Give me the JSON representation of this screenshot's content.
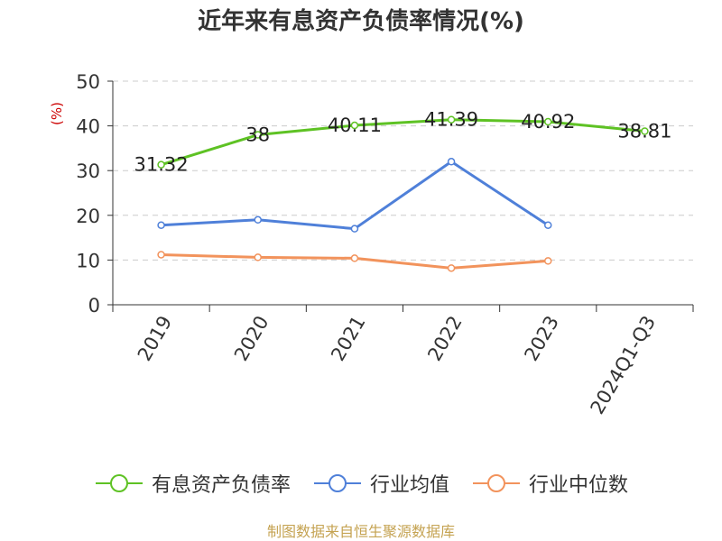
{
  "title": "近年来有息资产负债率情况(%)",
  "source_note": "制图数据来自恒生聚源数据库",
  "colors": {
    "series_0": "#5ec224",
    "series_1": "#4f80d9",
    "series_2": "#f2935c",
    "axis": "#333333",
    "grid": "#cccccc",
    "ylabel": "#cc0000"
  },
  "chart_data": {
    "type": "line",
    "title": "近年来有息资产负债率情况(%)",
    "xlabel": "",
    "ylabel": "(%)",
    "categories": [
      "2019",
      "2020",
      "2021",
      "2022",
      "2023",
      "2024Q1-Q3"
    ],
    "ylim": [
      0,
      50
    ],
    "yticks": [
      0,
      10,
      20,
      30,
      40,
      50
    ],
    "grid": true,
    "legend_position": "bottom",
    "series": [
      {
        "name": "有息资产负债率",
        "values": [
          31.32,
          38,
          40.11,
          41.39,
          40.92,
          38.81
        ],
        "labels": [
          "31.32",
          "38",
          "40.11",
          "41.39",
          "40.92",
          "38.81"
        ],
        "show_labels": true
      },
      {
        "name": "行业均值",
        "values": [
          17.8,
          19.0,
          17.0,
          32.0,
          17.8,
          null
        ],
        "show_labels": false
      },
      {
        "name": "行业中位数",
        "values": [
          11.2,
          10.6,
          10.4,
          8.2,
          9.8,
          null
        ],
        "show_labels": false
      }
    ]
  }
}
